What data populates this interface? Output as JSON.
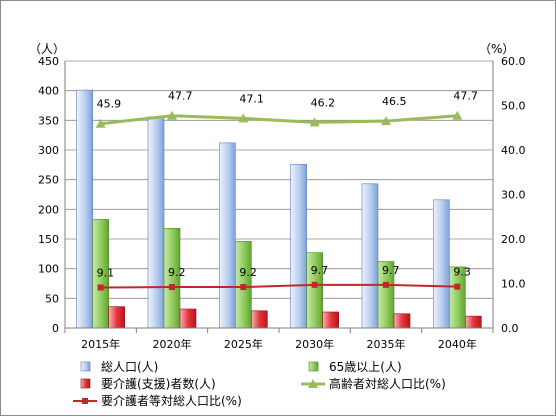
{
  "chart_data": {
    "type": "bar",
    "categories": [
      "2015年",
      "2020年",
      "2025年",
      "2030年",
      "2035年",
      "2040年"
    ],
    "left_axis": {
      "unit": "（人）",
      "ylim": [
        0,
        450
      ],
      "ticks": [
        "0",
        "50",
        "100",
        "150",
        "200",
        "250",
        "300",
        "350",
        "400",
        "450"
      ]
    },
    "right_axis": {
      "unit": "（%）",
      "ylim": [
        0,
        60
      ],
      "ticks": [
        "0.0",
        "10.0",
        "20.0",
        "30.0",
        "40.0",
        "50.0",
        "60.0"
      ]
    },
    "grid": true,
    "legend_position": "bottom",
    "series": [
      {
        "name": "総人口(人)",
        "kind": "bar",
        "axis": "left",
        "color": "#9db9e6",
        "values": [
          401,
          356,
          312,
          276,
          243,
          216
        ]
      },
      {
        "name": "65歳以上(人)",
        "kind": "bar",
        "axis": "left",
        "color": "#7cc04a",
        "values": [
          183,
          168,
          146,
          127,
          112,
          103
        ]
      },
      {
        "name": "要介護(支援)者数(人)",
        "kind": "bar",
        "axis": "left",
        "color": "#e0252d",
        "values": [
          36,
          32,
          29,
          27,
          24,
          20
        ]
      },
      {
        "name": "高齢者対総人口比(%)",
        "kind": "line",
        "axis": "right",
        "color": "#9bbb59",
        "marker": "triangle",
        "values": [
          45.9,
          47.7,
          47.1,
          46.2,
          46.5,
          47.7
        ],
        "labels": [
          "45.9",
          "47.7",
          "47.1",
          "46.2",
          "46.5",
          "47.7"
        ]
      },
      {
        "name": "要介護者等対総人口比(%)",
        "kind": "line",
        "axis": "right",
        "color": "#c0282d",
        "marker": "square",
        "values": [
          9.1,
          9.2,
          9.2,
          9.7,
          9.7,
          9.3
        ],
        "labels": [
          "9.1",
          "9.2",
          "9.2",
          "9.7",
          "9.7",
          "9.3"
        ]
      }
    ]
  }
}
